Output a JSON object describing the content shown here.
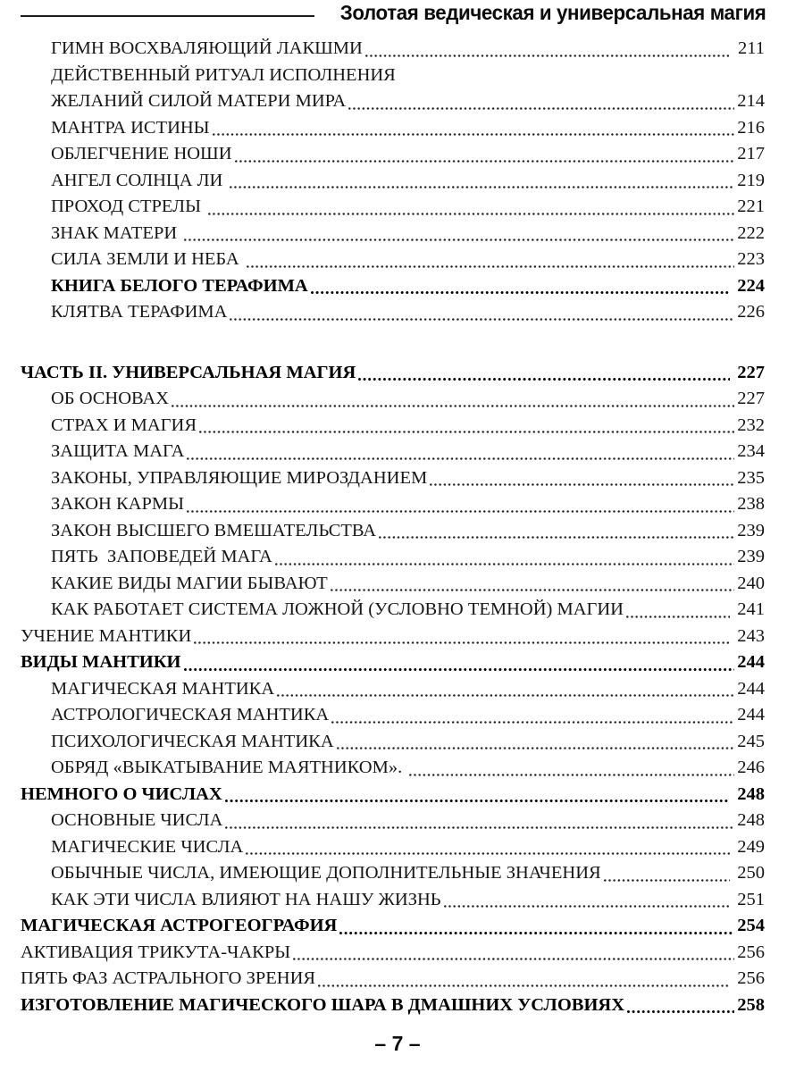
{
  "colors": {
    "ink": "#151515",
    "background": "#ffffff"
  },
  "header": {
    "running_title": "Золотая ведическая и универсальная магия"
  },
  "footer": {
    "page_label": "– 7 –"
  },
  "toc": {
    "entries": [
      {
        "title": "ГИМН ВОСХВАЛЯЮЩИЙ ЛАКШМИ",
        "page": " 211",
        "level": 2,
        "bold": false
      },
      {
        "title": "ДЕЙСТВЕННЫЙ РИТУАЛ ИСПОЛНЕНИЯ",
        "page": "",
        "level": 2,
        "bold": false
      },
      {
        "title": "ЖЕЛАНИЙ СИЛОЙ МАТЕРИ МИРА",
        "page": "214",
        "level": 2,
        "bold": false
      },
      {
        "title": "МАНТРА ИСТИНЫ",
        "page": "216",
        "level": 2,
        "bold": false
      },
      {
        "title": "ОБЛЕГЧЕНИЕ НОШИ",
        "page": "217",
        "level": 2,
        "bold": false
      },
      {
        "title": "АНГЕЛ СОЛНЦА ЛИ ",
        "page": "219",
        "level": 2,
        "bold": false
      },
      {
        "title": "ПРОХОД СТРЕЛЫ ",
        "page": "221",
        "level": 2,
        "bold": false
      },
      {
        "title": "ЗНАК МАТЕРИ ",
        "page": "222",
        "level": 2,
        "bold": false
      },
      {
        "title": "СИЛА ЗЕМЛИ И НЕБА ",
        "page": "223",
        "level": 2,
        "bold": false
      },
      {
        "title": "КНИГА БЕЛОГО ТЕРАФИМА",
        "page": " 224",
        "level": 2,
        "bold": true
      },
      {
        "title": "КЛЯТВА ТЕРАФИМА",
        "page": "226",
        "level": 2,
        "bold": false
      },
      {
        "title": "ЧАСТЬ II. УНИВЕРСАЛЬНАЯ МАГИЯ",
        "page": " 227",
        "level": 1,
        "bold": true,
        "gap_before": true
      },
      {
        "title": "ОБ ОСНОВАХ",
        "page": "227",
        "level": 2,
        "bold": false
      },
      {
        "title": "СТРАХ И МАГИЯ",
        "page": "232",
        "level": 2,
        "bold": false
      },
      {
        "title": "ЗАЩИТА МАГА",
        "page": "234",
        "level": 2,
        "bold": false
      },
      {
        "title": "ЗАКОНЫ, УПРАВЛЯЮЩИЕ МИРОЗДАНИЕМ",
        "page": "235",
        "level": 2,
        "bold": false
      },
      {
        "title": "ЗАКОН КАРМЫ",
        "page": "238",
        "level": 2,
        "bold": false
      },
      {
        "title": "ЗАКОН ВЫСШЕГО ВМЕШАТЕЛЬСТВА",
        "page": "239",
        "level": 2,
        "bold": false
      },
      {
        "title": "ПЯТЬ  ЗАПОВЕДЕЙ МАГА",
        "page": "239",
        "level": 2,
        "bold": false
      },
      {
        "title": "КАКИЕ ВИДЫ МАГИИ БЫВАЮТ",
        "page": "240",
        "level": 2,
        "bold": false
      },
      {
        "title": "КАК РАБОТАЕТ СИСТЕМА ЛОЖНОЙ (УСЛОВНО ТЕМНОЙ) МАГИИ",
        "page": " 241",
        "level": 2,
        "bold": false
      },
      {
        "title": "УЧЕНИЕ МАНТИКИ",
        "page": " 243",
        "level": 1,
        "bold": false
      },
      {
        "title": "ВИДЫ МАНТИКИ",
        "page": "244",
        "level": 1,
        "bold": true
      },
      {
        "title": "МАГИЧЕСКАЯ МАНТИКА",
        "page": "244",
        "level": 2,
        "bold": false
      },
      {
        "title": "АСТРОЛОГИЧЕСКАЯ МАНТИКА",
        "page": "244",
        "level": 2,
        "bold": false
      },
      {
        "title": "ПСИХОЛОГИЧЕСКАЯ МАНТИКА",
        "page": "245",
        "level": 2,
        "bold": false
      },
      {
        "title": "ОБРЯД «ВЫКАТЫВАНИЕ МАЯТНИКОМ». ",
        "page": "246",
        "level": 2,
        "bold": false
      },
      {
        "title": "НЕМНОГО О ЧИСЛАХ",
        "page": " 248",
        "level": 1,
        "bold": true
      },
      {
        "title": "ОСНОВНЫЕ ЧИСЛА",
        "page": "248",
        "level": 2,
        "bold": false
      },
      {
        "title": "МАГИЧЕСКИЕ ЧИСЛА",
        "page": " 249",
        "level": 2,
        "bold": false
      },
      {
        "title": "ОБЫЧНЫЕ ЧИСЛА, ИМЕЮЩИЕ ДОПОЛНИТЕЛЬНЫЕ ЗНАЧЕНИЯ",
        "page": " 250",
        "level": 2,
        "bold": false
      },
      {
        "title": "КАК ЭТИ ЧИСЛА ВЛИЯЮТ НА НАШУ ЖИЗНЬ",
        "page": " 251",
        "level": 2,
        "bold": false
      },
      {
        "title": "МАГИЧЕСКАЯ АСТРОГЕОГРАФИЯ",
        "page": "254",
        "level": 1,
        "bold": true
      },
      {
        "title": "АКТИВАЦИЯ ТРИКУТА-ЧАКРЫ",
        "page": "256",
        "level": 1,
        "bold": false
      },
      {
        "title": "ПЯТЬ ФАЗ АСТРАЛЬНОГО ЗРЕНИЯ",
        "page": " 256",
        "level": 1,
        "bold": false
      },
      {
        "title": "ИЗГОТОВЛЕНИЕ МАГИЧЕСКОГО ШАРА В ДМАШНИХ УСЛОВИЯХ",
        "page": "258",
        "level": 1,
        "bold": true
      }
    ]
  }
}
